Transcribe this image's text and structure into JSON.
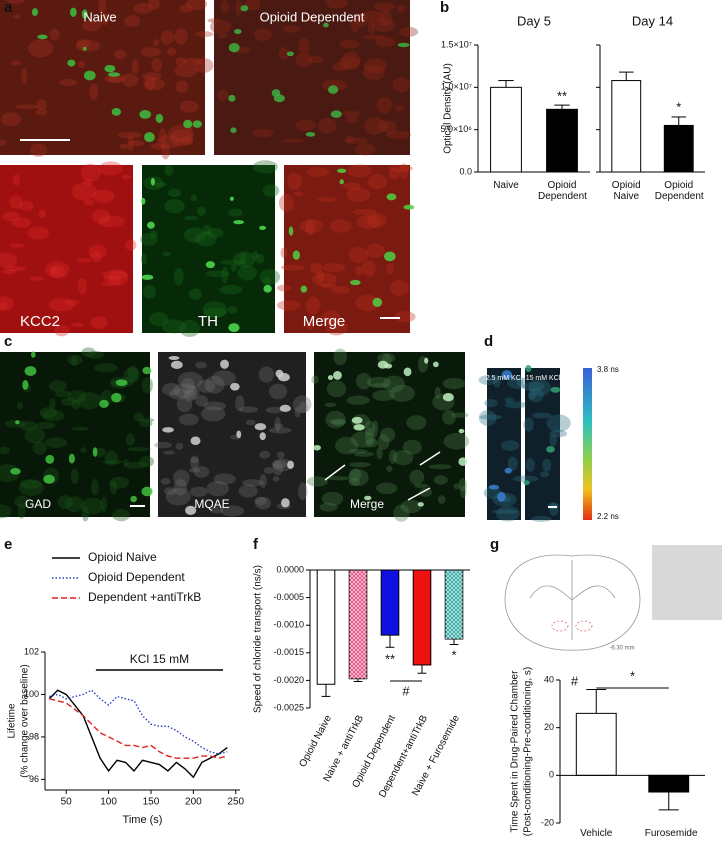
{
  "panel_letters": [
    "a",
    "b",
    "c",
    "d",
    "e",
    "f",
    "g"
  ],
  "images": {
    "a_top": [
      "Naive",
      "Opioid Dependent"
    ],
    "a_bottom": [
      "KCC2",
      "TH",
      "Merge"
    ],
    "c": [
      "GAD",
      "MQAE",
      "Merge"
    ],
    "d": [
      "2.5 mM KCl",
      "15 mM KCl"
    ],
    "d_scale": [
      "3.8 ns",
      "2.2 ns"
    ],
    "g_section": "-6.30 mm"
  },
  "chart_data": [
    {
      "type": "bar",
      "title": "Day 5",
      "ylabel": [
        "Optical Density (AU)"
      ],
      "categories": [
        "Naive",
        "Opioid Dependent"
      ],
      "values": [
        10000000,
        7400000
      ],
      "errors": [
        800000,
        500000
      ],
      "colors": [
        "#ffffff",
        "#000000"
      ],
      "hatch": [
        false,
        false
      ],
      "ylim": [
        0,
        15000000
      ],
      "yticks": [
        {
          "value": 0,
          "label": "0.0"
        },
        {
          "value": 5000000,
          "label": "5.0×10⁶"
        },
        {
          "value": 10000000,
          "label": "1.0×10⁷"
        },
        {
          "value": 15000000,
          "label": "1.5×10⁷"
        }
      ],
      "annotations": [
        "**"
      ]
    },
    {
      "type": "bar",
      "title": "Day 14",
      "categories": [
        "Opioid Naive",
        "Opioid Dependent"
      ],
      "values": [
        10800000,
        5500000
      ],
      "errors": [
        1000000,
        1000000
      ],
      "colors": [
        "#ffffff",
        "#000000"
      ],
      "hatch": [
        false,
        false
      ],
      "ylim": [
        0,
        15000000
      ],
      "yticks": [
        0,
        5000000,
        10000000,
        15000000
      ],
      "annotations": [
        "*"
      ]
    },
    {
      "type": "line",
      "ylabel": [
        "Lifetime",
        "(% change over baseline)"
      ],
      "xlabel": "Time (s)",
      "x": [
        30,
        40,
        50,
        60,
        70,
        80,
        90,
        100,
        110,
        120,
        130,
        140,
        150,
        160,
        170,
        180,
        190,
        200,
        210,
        220,
        230,
        240
      ],
      "series": [
        {
          "name": "Opioid Naive",
          "color": "#000000",
          "dash": "solid",
          "values": [
            99.8,
            100.2,
            100,
            99.5,
            99,
            98,
            97,
            96.4,
            96.9,
            96.8,
            96.4,
            96.9,
            96.8,
            96.7,
            96.4,
            96.8,
            96.5,
            96.1,
            96.8,
            97,
            97.2,
            97.5
          ]
        },
        {
          "name": "Opioid Dependent",
          "color": "#2a3fc4",
          "dash": "dotted",
          "values": [
            99.9,
            100,
            99.8,
            99.9,
            100,
            100.2,
            99.8,
            99.5,
            99.9,
            99.8,
            99.7,
            99,
            98.6,
            98.5,
            98.5,
            98.3,
            98,
            97.8,
            97.5,
            97.3,
            97.2,
            97.3
          ]
        },
        {
          "name": "Dependent +antiTrkB",
          "color": "#e02020",
          "dash": "dashed",
          "values": [
            99.8,
            99.7,
            99.6,
            99.3,
            99,
            98.6,
            98.2,
            98,
            97.8,
            97.6,
            97.6,
            97.5,
            97.6,
            97.3,
            97.1,
            97,
            97,
            97,
            97.1,
            97.1,
            97,
            97.1
          ]
        }
      ],
      "xlim": [
        25,
        255
      ],
      "xticks": [
        50,
        100,
        150,
        200,
        250
      ],
      "ylim": [
        95.5,
        102
      ],
      "yticks": [
        96,
        98,
        100,
        102
      ],
      "annotations": [
        "KCl 15 mM"
      ]
    },
    {
      "type": "bar",
      "ylabel": [
        "Speed of chloride transport (ns/s)"
      ],
      "categories": [
        "Opioid Naive",
        "Naive + antiTrkB",
        "Opioid Dependent",
        "Dependent+antiTrkB",
        "Naive + Furosemide"
      ],
      "values": [
        -0.00207,
        -0.00197,
        -0.00118,
        -0.00172,
        -0.00125
      ],
      "errors": [
        0.00022,
        5e-05,
        0.00022,
        0.00015,
        0.0001
      ],
      "colors": [
        "#ffffff",
        "#e8457a",
        "#1010e0",
        "#ee1111",
        "#2aa5a0"
      ],
      "hatch": [
        false,
        true,
        false,
        false,
        true
      ],
      "ylim": [
        -0.0025,
        0
      ],
      "yticks": [
        {
          "value": 0,
          "label": "0.0000"
        },
        {
          "value": -0.0005,
          "label": "-0.0005"
        },
        {
          "value": -0.001,
          "label": "-0.0010"
        },
        {
          "value": -0.0015,
          "label": "-0.0015"
        },
        {
          "value": -0.002,
          "label": "-0.0020"
        },
        {
          "value": -0.0025,
          "label": "-0.0025"
        }
      ],
      "annotations": [
        "**",
        "#",
        "*"
      ]
    },
    {
      "type": "bar",
      "ylabel": [
        "Time Spent in Drug-Paired Chamber",
        "(Post-conditioning-Pre-conditioning, s)"
      ],
      "categories": [
        "Vehicle",
        "Furosemide"
      ],
      "values": [
        26,
        -7
      ],
      "errors": [
        10,
        7.5
      ],
      "colors": [
        "#ffffff",
        "#000000"
      ],
      "hatch": [
        false,
        false
      ],
      "ylim": [
        -20,
        40
      ],
      "yticks": [
        -20,
        0,
        20,
        40
      ],
      "annotations": [
        "#",
        "*"
      ]
    }
  ]
}
